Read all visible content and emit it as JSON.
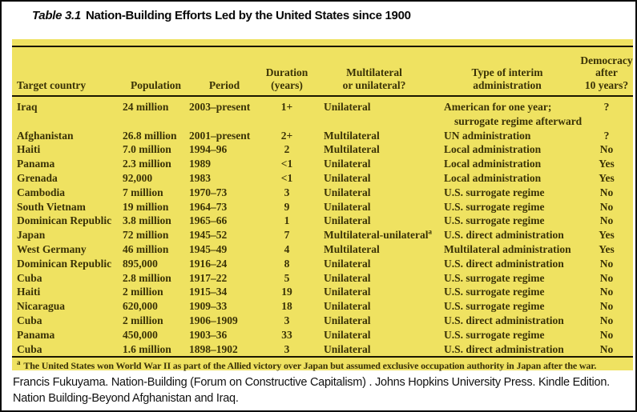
{
  "title": {
    "label": "Table 3.1",
    "text": "Nation-Building Efforts Led by the United States since 1900"
  },
  "colors": {
    "table_bg": "#EFE261",
    "table_text": "#3A3206",
    "rule": "#1B1700",
    "page_bg": "#FFFFFF",
    "citation_text": "#111111"
  },
  "table": {
    "headers": [
      {
        "id": "target-country",
        "lines": [
          "Target country"
        ]
      },
      {
        "id": "population",
        "lines": [
          "Population"
        ]
      },
      {
        "id": "period",
        "lines": [
          "Period"
        ]
      },
      {
        "id": "duration",
        "lines": [
          "Duration",
          "(years)"
        ]
      },
      {
        "id": "multilateral-or-unilateral",
        "lines": [
          "Multilateral",
          "or unilateral?"
        ]
      },
      {
        "id": "type-of-interim-administration",
        "lines": [
          "Type of interim",
          "administration"
        ]
      },
      {
        "id": "democracy-after-10-years",
        "lines": [
          "Democracy",
          "after",
          "10 years?"
        ]
      }
    ],
    "rows": [
      {
        "country": "Iraq",
        "population": "24 million",
        "period": "2003–present",
        "duration": "1+",
        "multilateral": "Unilateral",
        "interim": [
          "American for one year;",
          "surrogate regime afterward"
        ],
        "democracy": "?"
      },
      {
        "country": "Afghanistan",
        "population": "26.8 million",
        "period": "2001–present",
        "duration": "2+",
        "multilateral": "Multilateral",
        "interim": [
          "UN administration"
        ],
        "democracy": "?"
      },
      {
        "country": "Haiti",
        "population": "7.0 million",
        "period": "1994–96",
        "duration": "2",
        "multilateral": "Multilateral",
        "interim": [
          "Local administration"
        ],
        "democracy": "No"
      },
      {
        "country": "Panama",
        "population": "2.3 million",
        "period": "1989",
        "duration": "<1",
        "multilateral": "Unilateral",
        "interim": [
          "Local administration"
        ],
        "democracy": "Yes"
      },
      {
        "country": "Grenada",
        "population": "92,000",
        "period": "1983",
        "duration": "<1",
        "multilateral": "Unilateral",
        "interim": [
          "Local administration"
        ],
        "democracy": "Yes"
      },
      {
        "country": "Cambodia",
        "population": "7 million",
        "period": "1970–73",
        "duration": "3",
        "multilateral": "Unilateral",
        "interim": [
          "U.S. surrogate regime"
        ],
        "democracy": "No"
      },
      {
        "country": "South Vietnam",
        "population": "19 million",
        "period": "1964–73",
        "duration": "9",
        "multilateral": "Unilateral",
        "interim": [
          "U.S. surrogate regime"
        ],
        "democracy": "No"
      },
      {
        "country": "Dominican Republic",
        "population": "3.8 million",
        "period": "1965–66",
        "duration": "1",
        "multilateral": "Unilateral",
        "interim": [
          "U.S. surrogate regime"
        ],
        "democracy": "No"
      },
      {
        "country": "Japan",
        "population": "72 million",
        "period": "1945–52",
        "duration": "7",
        "multilateral": "Multilateral-unilateral",
        "note_marker": "a",
        "interim": [
          "U.S. direct administration"
        ],
        "democracy": "Yes"
      },
      {
        "country": "West Germany",
        "population": "46 million",
        "period": "1945–49",
        "duration": "4",
        "multilateral": "Multilateral",
        "interim": [
          "Multilateral administration"
        ],
        "democracy": "Yes"
      },
      {
        "country": "Dominican Republic",
        "population": "895,000",
        "period": "1916–24",
        "duration": "8",
        "multilateral": "Unilateral",
        "interim": [
          "U.S. direct administration"
        ],
        "democracy": "No"
      },
      {
        "country": "Cuba",
        "population": "2.8 million",
        "period": "1917–22",
        "duration": "5",
        "multilateral": "Unilateral",
        "interim": [
          "U.S. surrogate regime"
        ],
        "democracy": "No"
      },
      {
        "country": "Haiti",
        "population": "2 million",
        "period": "1915–34",
        "duration": "19",
        "multilateral": "Unilateral",
        "interim": [
          "U.S. surrogate regime"
        ],
        "democracy": "No"
      },
      {
        "country": "Nicaragua",
        "population": "620,000",
        "period": "1909–33",
        "duration": "18",
        "multilateral": "Unilateral",
        "interim": [
          "U.S. surrogate regime"
        ],
        "democracy": "No"
      },
      {
        "country": "Cuba",
        "population": "2 million",
        "period": "1906–1909",
        "duration": "3",
        "multilateral": "Unilateral",
        "interim": [
          "U.S. direct administration"
        ],
        "democracy": "No"
      },
      {
        "country": "Panama",
        "population": "450,000",
        "period": "1903–36",
        "duration": "33",
        "multilateral": "Unilateral",
        "interim": [
          "U.S. surrogate regime"
        ],
        "democracy": "No"
      },
      {
        "country": "Cuba",
        "population": "1.6 million",
        "period": "1898–1902",
        "duration": "3",
        "multilateral": "Unilateral",
        "interim": [
          "U.S. direct administration"
        ],
        "democracy": "No"
      }
    ],
    "footnote": {
      "marker": "a",
      "text": "The United States won World War II as part of the Allied victory over Japan but assumed exclusive occupation authority in Japan after the war."
    }
  },
  "citation": {
    "text": "Francis Fukuyama. Nation-Building (Forum on Constructive Capitalism) . Johns Hopkins University Press. Kindle Edition. Nation Building-Beyond Afghanistan and Iraq."
  }
}
